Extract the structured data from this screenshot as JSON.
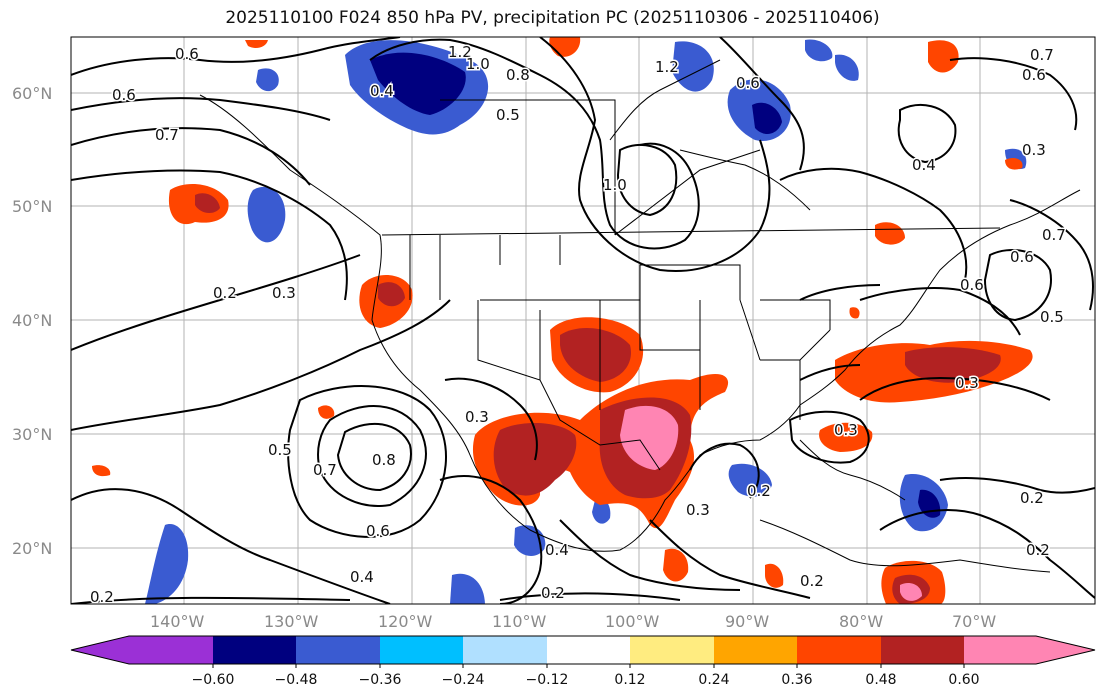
{
  "title": "2025110100 F024 850 hPa PV, precipitation PC (2025110306 - 2025110406)",
  "lat_labels": [
    "60°N",
    "50°N",
    "40°N",
    "30°N",
    "20°N"
  ],
  "lon_labels": [
    "140°W",
    "130°W",
    "120°W",
    "110°W",
    "100°W",
    "90°W",
    "80°W",
    "70°W"
  ],
  "colorbar": {
    "ticks": [
      "−0.60",
      "−0.48",
      "−0.36",
      "−0.24",
      "−0.12",
      "0.12",
      "0.24",
      "0.36",
      "0.48",
      "0.60"
    ],
    "colors": [
      "#9b30d6",
      "#00007f",
      "#3a5bd1",
      "#00bfff",
      "#b0e0ff",
      "#ffffff",
      "#ffec80",
      "#ffa500",
      "#ff4500",
      "#b22222",
      "#ff85b3"
    ]
  },
  "contour_labels": [
    "0.6",
    "1.2",
    "1.0",
    "0.8",
    "0.4",
    "0.6",
    "0.7",
    "0.5",
    "1.2",
    "0.6",
    "0.7",
    "0.6",
    "1.0",
    "0.4",
    "0.3",
    "0.2",
    "0.3",
    "0.7",
    "0.6",
    "0.6",
    "0.5",
    "0.5",
    "0.7",
    "0.8",
    "0.6",
    "0.4",
    "0.2",
    "0.3",
    "0.3",
    "0.3",
    "0.4",
    "0.2",
    "0.2",
    "0.2",
    "0.2",
    "0.2",
    "0.3"
  ]
}
